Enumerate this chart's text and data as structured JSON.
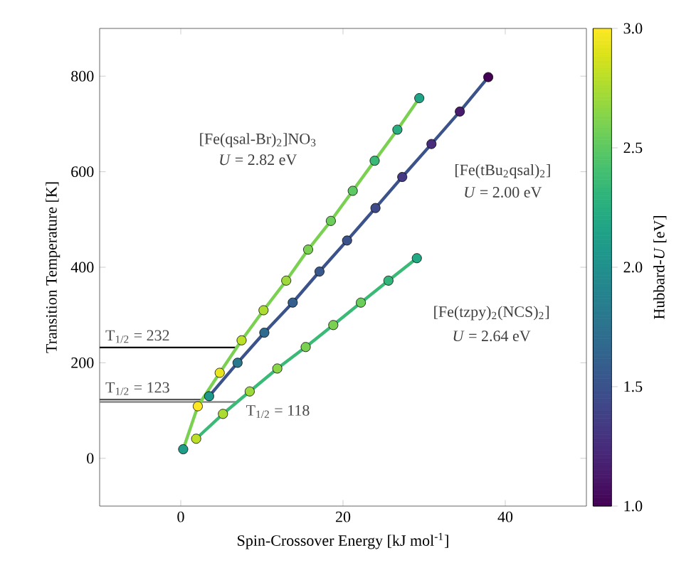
{
  "chart_data": {
    "type": "scatter",
    "xlabel": "Spin-Crossover Energy [kJ mol$^{-1}$]",
    "ylabel": "Transition Temperature [K]",
    "clabel": "Hubbard-*U* [eV]",
    "xlim": [
      -10,
      50
    ],
    "xticks": [
      0,
      20,
      40
    ],
    "ylim": [
      -100,
      900
    ],
    "yticks": [
      0,
      200,
      400,
      600,
      800
    ],
    "clim": [
      1.0,
      3.0
    ],
    "cticks": [
      {
        "value": 1.0,
        "label": "1.0"
      },
      {
        "value": 1.5,
        "label": "1.5"
      },
      {
        "value": 2.0,
        "label": "2.0"
      },
      {
        "value": 2.5,
        "label": "2.5"
      },
      {
        "value": 3.0,
        "label": "3.0"
      }
    ],
    "series": [
      {
        "type": "line",
        "line_style": "solid",
        "color": "#7ad151",
        "x": [
          0.3,
          2.1,
          4.8,
          7.5,
          10.2,
          13.0,
          15.7,
          18.5,
          21.2,
          23.9,
          26.7,
          29.4
        ],
        "values": [
          19,
          109,
          179,
          247,
          310,
          372,
          437,
          497,
          560,
          623,
          688,
          754
        ]
      },
      {
        "type": "line",
        "line_style": "solid",
        "color": "#3b528b",
        "x": [
          3.5,
          7.0,
          10.3,
          13.8,
          17.1,
          20.5,
          24.0,
          27.3,
          30.9,
          34.4,
          37.9
        ],
        "values": [
          130,
          200,
          263,
          326,
          391,
          456,
          524,
          589,
          658,
          726,
          798
        ]
      },
      {
        "type": "line",
        "line_style": "solid",
        "color": "#3aba76",
        "x": [
          1.9,
          5.2,
          8.5,
          11.9,
          15.4,
          18.8,
          22.2,
          25.6,
          29.1
        ],
        "values": [
          41,
          93,
          140,
          188,
          233,
          279,
          326,
          372,
          419
        ]
      },
      {
        "marker": "circle",
        "x": [
          0.3,
          2.1,
          4.8,
          7.5,
          10.2,
          13.0,
          15.7,
          18.5,
          21.2,
          23.9,
          26.7,
          29.4
        ],
        "values": [
          19,
          109,
          179,
          247,
          310,
          372,
          437,
          497,
          560,
          623,
          688,
          754
        ],
        "cvalues": [
          2.1,
          3.0,
          2.95,
          2.8,
          2.75,
          2.7,
          2.6,
          2.55,
          2.5,
          2.35,
          2.25,
          2.15
        ],
        "colors": [
          "#1f9e89",
          "#fde725",
          "#e5e419",
          "#bddf26",
          "#addc30",
          "#9fda3a",
          "#7ad151",
          "#6ccd5a",
          "#5ec962",
          "#3aba76",
          "#27ad81",
          "#20a386"
        ]
      },
      {
        "marker": "circle",
        "x": [
          3.5,
          7.0,
          10.3,
          13.8,
          17.1,
          20.5,
          24.0,
          27.3,
          30.9,
          34.4,
          37.9
        ],
        "values": [
          130,
          200,
          263,
          326,
          391,
          456,
          524,
          589,
          658,
          726,
          798
        ],
        "cvalues": [
          2.05,
          1.8,
          1.7,
          1.6,
          1.55,
          1.5,
          1.45,
          1.35,
          1.25,
          1.15,
          1.0
        ],
        "colors": [
          "#1f978b",
          "#2a788e",
          "#306a8e",
          "#355f8d",
          "#38588c",
          "#3b528b",
          "#3e4989",
          "#453781",
          "#472d7b",
          "#481a6c",
          "#440154"
        ]
      },
      {
        "marker": "circle",
        "x": [
          1.9,
          5.2,
          8.5,
          11.9,
          15.4,
          18.8,
          22.2,
          25.6,
          29.1
        ],
        "values": [
          41,
          93,
          140,
          188,
          233,
          279,
          326,
          372,
          419
        ],
        "cvalues": [
          2.8,
          2.75,
          2.7,
          2.65,
          2.6,
          2.6,
          2.55,
          2.3,
          2.2
        ],
        "colors": [
          "#bddf26",
          "#addc30",
          "#9fda3a",
          "#8bd646",
          "#7ad151",
          "#7ad151",
          "#6ccd5a",
          "#35b779",
          "#22a884"
        ]
      }
    ],
    "ref_lines": [
      {
        "axis": "y",
        "value": 232,
        "label": "T$_{1/2}$ = 232",
        "color": "#000000"
      },
      {
        "axis": "y",
        "value": 123,
        "label": "T$_{1/2}$ = 123",
        "color": "#555555"
      },
      {
        "axis": "y",
        "value": 118,
        "label": "T$_{1/2}$ = 118",
        "color": "#888888"
      }
    ],
    "annotations": [
      "[Fe(qsal-Br)$_{2}$]NO$_{3}$",
      "*U* = 2.82 eV",
      "[Fe(tBu$_{2}$qsal)$_{2}$]",
      "*U* = 2.00 eV",
      "[Fe(tzpy)$_{2}$(NCS)$_{2}$]",
      "*U* = 2.64 eV"
    ]
  }
}
